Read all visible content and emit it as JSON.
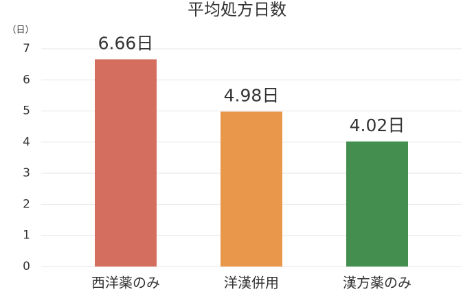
{
  "chart_data": {
    "type": "bar",
    "title": "平均処方日数",
    "y_unit": "（日）",
    "categories": [
      "西洋薬のみ",
      "洋漢併用",
      "漢方薬のみ"
    ],
    "values": [
      6.66,
      4.98,
      4.02
    ],
    "value_labels": [
      "6.66日",
      "4.98日",
      "4.02日"
    ],
    "colors": [
      "#d46e5e",
      "#e8974b",
      "#448f50"
    ],
    "ylim": [
      0,
      7
    ],
    "yticks": [
      0,
      1,
      2,
      3,
      4,
      5,
      6,
      7
    ],
    "grid": true
  }
}
